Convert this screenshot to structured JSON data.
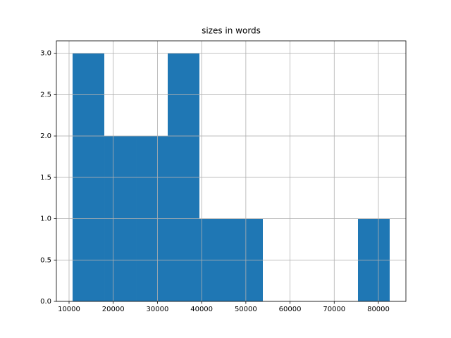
{
  "chart_data": {
    "type": "histogram",
    "title": "sizes in words",
    "bins": [
      10800,
      17975,
      25150,
      32325,
      39500,
      46675,
      53850,
      61025,
      68200,
      75375,
      82550
    ],
    "values": [
      3,
      2,
      2,
      3,
      1,
      1,
      0,
      0,
      0,
      1
    ],
    "color": "#1f77b4",
    "xlim": [
      7130,
      86220
    ],
    "xticks": [
      10000,
      20000,
      30000,
      40000,
      50000,
      60000,
      70000,
      80000
    ],
    "ylim": [
      0,
      3.15
    ],
    "yticks": [
      {
        "value": 0,
        "label": "0.0"
      },
      {
        "value": 0.5,
        "label": "0.5"
      },
      {
        "value": 1,
        "label": "1.0"
      },
      {
        "value": 1.5,
        "label": "1.5"
      },
      {
        "value": 2,
        "label": "2.0"
      },
      {
        "value": 2.5,
        "label": "2.5"
      },
      {
        "value": 3,
        "label": "3.0"
      }
    ],
    "grid": true
  }
}
